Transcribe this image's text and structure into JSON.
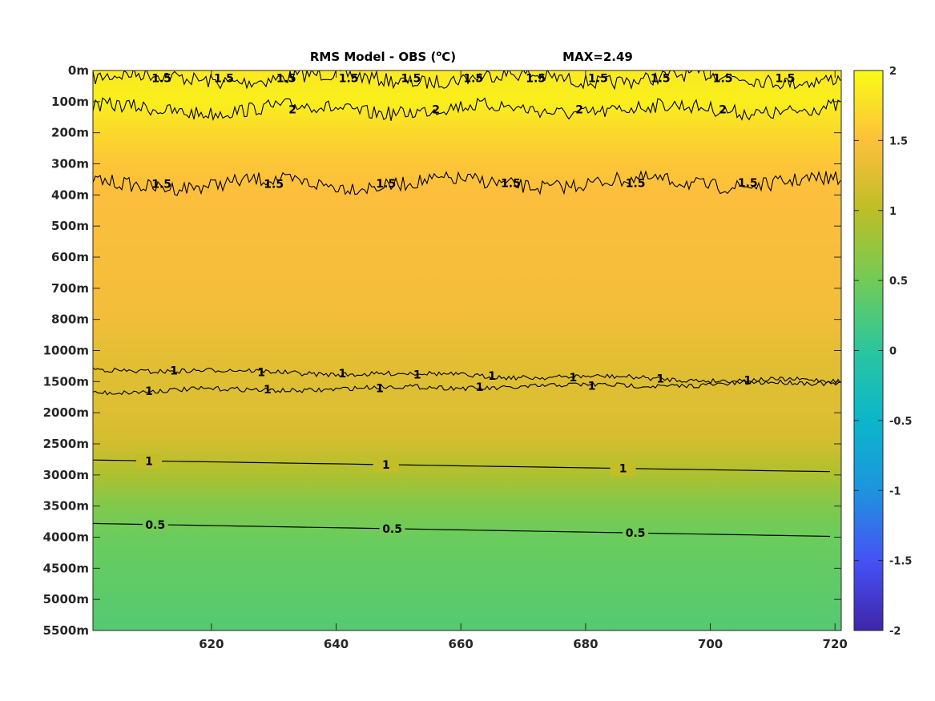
{
  "chart_data": {
    "type": "heatmap",
    "title": "RMS Model - OBS (",
    "title_unit_sup": "o",
    "title_unit": "C)",
    "annotation": "MAX=2.49",
    "xlabel": "",
    "ylabel": "",
    "x_range": [
      601,
      721
    ],
    "x_ticks": [
      "620",
      "640",
      "660",
      "680",
      "700",
      "720"
    ],
    "x_tick_values": [
      620,
      640,
      660,
      680,
      700,
      720
    ],
    "y_ticks": [
      "0m",
      "100m",
      "200m",
      "300m",
      "400m",
      "500m",
      "600m",
      "700m",
      "800m",
      "1000m",
      "1500m",
      "2000m",
      "2500m",
      "3000m",
      "3500m",
      "4000m",
      "4500m",
      "5000m",
      "5500m"
    ],
    "y_tick_depths": [
      0,
      100,
      200,
      300,
      400,
      500,
      600,
      700,
      800,
      1000,
      1500,
      2000,
      2500,
      3000,
      3500,
      4000,
      4500,
      5000,
      5500
    ],
    "colorbar": {
      "range": [
        -2,
        2
      ],
      "ticks": [
        "2",
        "1.5",
        "1",
        "0.5",
        "0",
        "-0.5",
        "-1",
        "-1.5",
        "-2"
      ],
      "tick_values": [
        2,
        1.5,
        1,
        0.5,
        0,
        -0.5,
        -1,
        -1.5,
        -2
      ],
      "colormap": "parula"
    },
    "depth_profile": [
      {
        "depth": 0,
        "value": 1.85
      },
      {
        "depth": 100,
        "value": 1.9
      },
      {
        "depth": 200,
        "value": 1.7
      },
      {
        "depth": 300,
        "value": 1.55
      },
      {
        "depth": 400,
        "value": 1.48
      },
      {
        "depth": 500,
        "value": 1.45
      },
      {
        "depth": 600,
        "value": 1.43
      },
      {
        "depth": 700,
        "value": 1.42
      },
      {
        "depth": 800,
        "value": 1.4
      },
      {
        "depth": 1000,
        "value": 1.3
      },
      {
        "depth": 1500,
        "value": 1.25
      },
      {
        "depth": 2000,
        "value": 1.25
      },
      {
        "depth": 2500,
        "value": 1.15
      },
      {
        "depth": 3000,
        "value": 0.9
      },
      {
        "depth": 3500,
        "value": 0.6
      },
      {
        "depth": 4000,
        "value": 0.45
      },
      {
        "depth": 4500,
        "value": 0.4
      },
      {
        "depth": 5000,
        "value": 0.35
      },
      {
        "depth": 5500,
        "value": 0.3
      }
    ],
    "contours": [
      {
        "level": "1.5",
        "depth_start": 25,
        "depth_end": 25,
        "noisy": true,
        "labels_x": [
          612,
          622,
          632,
          642,
          652,
          662,
          672,
          682,
          692,
          702,
          712
        ]
      },
      {
        "level": "2",
        "depth_start": 125,
        "depth_end": 125,
        "noisy": true,
        "labels_x": [
          633,
          656,
          679,
          702
        ]
      },
      {
        "level": "1.5",
        "depth_start": 365,
        "depth_end": 360,
        "noisy": true,
        "labels_x": [
          612,
          630,
          648,
          668,
          688,
          706
        ]
      },
      {
        "level": "1",
        "depth_start": 1300,
        "depth_end": 1500,
        "noisy": true,
        "labels_x": [
          614,
          628,
          641,
          653,
          665,
          678,
          692,
          706
        ]
      },
      {
        "level": "1",
        "depth_start": 1660,
        "depth_end": 1520,
        "noisy": true,
        "labels_x": [
          610,
          629,
          647,
          663,
          681
        ]
      },
      {
        "level": "1",
        "depth_start": 2760,
        "depth_end": 2950,
        "noisy": false,
        "labels_x": [
          610,
          648,
          686
        ]
      },
      {
        "level": "0.5",
        "depth_start": 3780,
        "depth_end": 3990,
        "noisy": false,
        "labels_x": [
          611,
          649,
          688
        ]
      }
    ]
  }
}
